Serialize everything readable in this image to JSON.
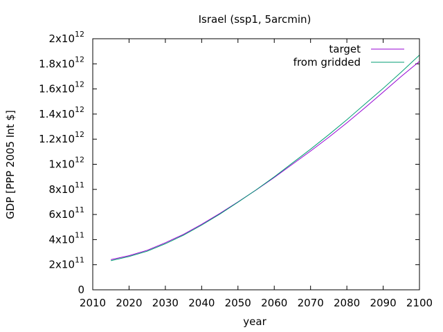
{
  "chart_data": {
    "type": "line",
    "title": "Israel (ssp1, 5arcmin)",
    "xlabel": "year",
    "ylabel": "GDP [PPP 2005 Int $]",
    "xlim": [
      2010,
      2100
    ],
    "ylim": [
      0,
      2000000000000
    ],
    "grid": false,
    "legend_position": "top-right",
    "x_ticks": [
      {
        "value": 2010,
        "label": "2010"
      },
      {
        "value": 2020,
        "label": "2020"
      },
      {
        "value": 2030,
        "label": "2030"
      },
      {
        "value": 2040,
        "label": "2040"
      },
      {
        "value": 2050,
        "label": "2050"
      },
      {
        "value": 2060,
        "label": "2060"
      },
      {
        "value": 2070,
        "label": "2070"
      },
      {
        "value": 2080,
        "label": "2080"
      },
      {
        "value": 2090,
        "label": "2090"
      },
      {
        "value": 2100,
        "label": "2100"
      }
    ],
    "y_ticks": [
      {
        "value": 0,
        "mantissa": "0",
        "exponent": ""
      },
      {
        "value": 200000000000,
        "mantissa": "2x10",
        "exponent": "11"
      },
      {
        "value": 400000000000,
        "mantissa": "4x10",
        "exponent": "11"
      },
      {
        "value": 600000000000,
        "mantissa": "6x10",
        "exponent": "11"
      },
      {
        "value": 800000000000,
        "mantissa": "8x10",
        "exponent": "11"
      },
      {
        "value": 1000000000000,
        "mantissa": "1x10",
        "exponent": "12"
      },
      {
        "value": 1200000000000,
        "mantissa": "1.2x10",
        "exponent": "12"
      },
      {
        "value": 1400000000000,
        "mantissa": "1.4x10",
        "exponent": "12"
      },
      {
        "value": 1600000000000,
        "mantissa": "1.6x10",
        "exponent": "12"
      },
      {
        "value": 1800000000000,
        "mantissa": "1.8x10",
        "exponent": "12"
      },
      {
        "value": 2000000000000,
        "mantissa": "2x10",
        "exponent": "12"
      }
    ],
    "series": [
      {
        "name": "target",
        "color": "#9400d3",
        "x": [
          2015,
          2020,
          2025,
          2030,
          2035,
          2040,
          2045,
          2050,
          2055,
          2060,
          2065,
          2070,
          2075,
          2080,
          2085,
          2090,
          2095,
          2100
        ],
        "y": [
          240000000000,
          272000000000,
          315000000000,
          375000000000,
          442000000000,
          522000000000,
          608000000000,
          700000000000,
          795000000000,
          895000000000,
          1000000000000,
          1105000000000,
          1215000000000,
          1330000000000,
          1450000000000,
          1575000000000,
          1700000000000,
          1820000000000
        ]
      },
      {
        "name": "from gridded",
        "color": "#009e73",
        "x": [
          2015,
          2020,
          2025,
          2030,
          2035,
          2040,
          2045,
          2050,
          2055,
          2060,
          2065,
          2070,
          2075,
          2080,
          2085,
          2090,
          2095,
          2100
        ],
        "y": [
          232000000000,
          265000000000,
          308000000000,
          367000000000,
          435000000000,
          515000000000,
          603000000000,
          698000000000,
          796000000000,
          900000000000,
          1010000000000,
          1120000000000,
          1235000000000,
          1355000000000,
          1480000000000,
          1605000000000,
          1735000000000,
          1870000000000
        ]
      }
    ]
  }
}
